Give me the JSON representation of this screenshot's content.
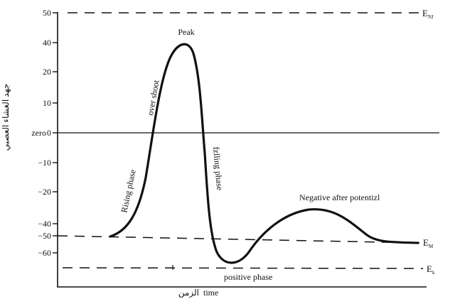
{
  "y_axis": {
    "label": "جهد الغشاء العصبي",
    "zero_label": "zero",
    "ticks": [
      "50",
      "40",
      "20",
      "10",
      "0",
      "−10",
      "−20",
      "−40",
      "−50",
      "−60"
    ]
  },
  "x_axis": {
    "label_ar": "الزمن",
    "label": "time"
  },
  "annotations": {
    "peak": "Peak",
    "overshoot": "over shoot",
    "rising": "Rising phase",
    "falling": "fzlling phase",
    "negative_after": "Negative after potentizl",
    "positive_phase": "positive phase"
  },
  "reference_lines": {
    "e_na": "E",
    "e_na_sub": "NJ",
    "e_m": "E",
    "e_m_sub": "M",
    "e_k": "E",
    "e_k_sub": "k"
  },
  "colors": {
    "ink": "#111111",
    "background": "#ffffff"
  }
}
